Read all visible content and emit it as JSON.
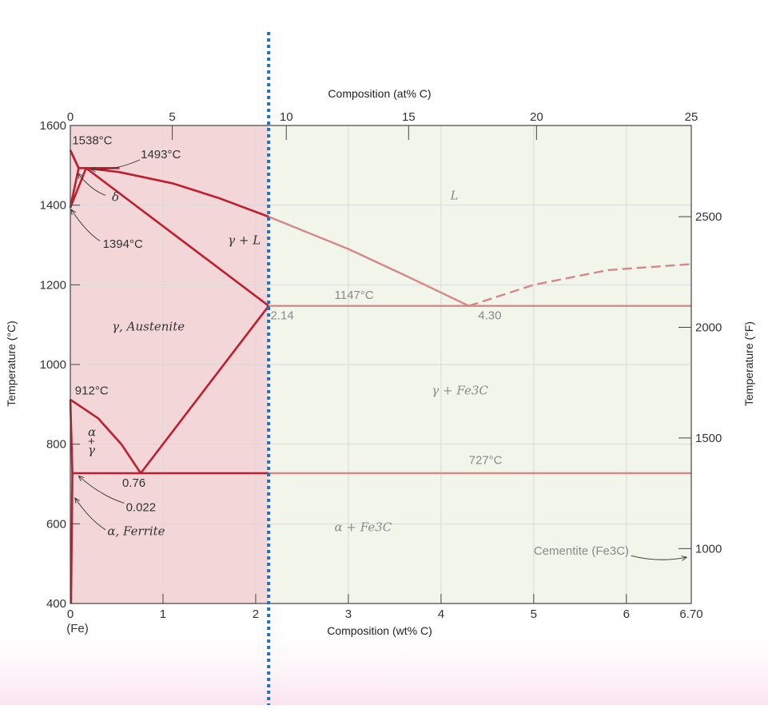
{
  "chart_data": {
    "type": "line",
    "title": "",
    "xlabel": "Composition (wt% C)",
    "ylabel": "Temperature (°C)",
    "x2label": "Composition (at% C)",
    "y2label": "Temperature (°F)",
    "xlim": [
      0,
      6.7
    ],
    "ylim": [
      400,
      1600
    ],
    "x_ticks": [
      {
        "value": 0,
        "label": "0"
      },
      {
        "value": 1,
        "label": "1"
      },
      {
        "value": 2,
        "label": "2"
      },
      {
        "value": 3,
        "label": "3"
      },
      {
        "value": 4,
        "label": "4"
      },
      {
        "value": 5,
        "label": "5"
      },
      {
        "value": 6,
        "label": "6"
      },
      {
        "value": 6.7,
        "label": "6.70"
      }
    ],
    "x_sublabel": "(Fe)",
    "y_ticks": [
      {
        "value": 400,
        "label": "400"
      },
      {
        "value": 600,
        "label": "600"
      },
      {
        "value": 800,
        "label": "800"
      },
      {
        "value": 1000,
        "label": "1000"
      },
      {
        "value": 1200,
        "label": "1200"
      },
      {
        "value": 1400,
        "label": "1400"
      },
      {
        "value": 1600,
        "label": "1600"
      }
    ],
    "top_ticks": [
      {
        "value": 0,
        "label": "0"
      },
      {
        "value": 1.1,
        "label": "5"
      },
      {
        "value": 2.33,
        "label": "10"
      },
      {
        "value": 3.65,
        "label": "15"
      },
      {
        "value": 5.03,
        "label": "20"
      },
      {
        "value": 6.7,
        "label": "25"
      }
    ],
    "right_ticks": [
      {
        "value": 537.8,
        "label": "1000"
      },
      {
        "value": 815.6,
        "label": "1500"
      },
      {
        "value": 1093.3,
        "label": "2000"
      },
      {
        "value": 1371.1,
        "label": "2500"
      }
    ],
    "grid": true,
    "highlight_region": {
      "from": 0,
      "to": 2.14,
      "color": "#f3d6d8"
    },
    "background_region_color": "#f1f5ea",
    "divider_line": {
      "x": 2.14,
      "style": "dotted",
      "color": "#1f6fc2"
    },
    "colors": {
      "dark_line": "#bf1e2e",
      "light_line": "#d68787"
    },
    "series": [
      {
        "x": [
          0,
          0.09
        ],
        "y": [
          1538,
          1493
        ],
        "style": "dark"
      },
      {
        "x": [
          0.09,
          0.53
        ],
        "y": [
          1493,
          1493
        ],
        "style": "dark"
      },
      {
        "x": [
          0.17,
          0.53,
          1.1,
          1.6,
          2.14
        ],
        "y": [
          1493,
          1483,
          1455,
          1418,
          1371
        ],
        "style": "dark"
      },
      {
        "x": [
          2.14,
          3.0,
          3.6,
          4.3
        ],
        "y": [
          1371,
          1290,
          1225,
          1147
        ],
        "style": "light"
      },
      {
        "x": [
          4.3,
          5.0,
          5.8,
          6.7
        ],
        "y": [
          1147,
          1200,
          1237,
          1252
        ],
        "style": "light-dashed"
      },
      {
        "x": [
          0,
          0.09
        ],
        "y": [
          1538,
          1493
        ],
        "style": "dark"
      },
      {
        "x": [
          0,
          0.09
        ],
        "y": [
          1394,
          1493
        ],
        "style": "dark"
      },
      {
        "x": [
          0,
          0.17
        ],
        "y": [
          1394,
          1493
        ],
        "style": "dark"
      },
      {
        "x": [
          0.17,
          2.14
        ],
        "y": [
          1493,
          1147
        ],
        "style": "dark"
      },
      {
        "x": [
          2.14,
          6.7
        ],
        "y": [
          1147,
          1147
        ],
        "style": "light"
      },
      {
        "x": [
          0,
          0.3,
          0.55,
          0.76
        ],
        "y": [
          912,
          865,
          800,
          727
        ],
        "style": "dark"
      },
      {
        "x": [
          0,
          0.022
        ],
        "y": [
          912,
          727
        ],
        "style": "dark"
      },
      {
        "x": [
          0.76,
          2.14
        ],
        "y": [
          727,
          1147
        ],
        "style": "dark"
      },
      {
        "x": [
          0.022,
          2.14
        ],
        "y": [
          727,
          727
        ],
        "style": "dark"
      },
      {
        "x": [
          2.14,
          6.7
        ],
        "y": [
          727,
          727
        ],
        "style": "light"
      },
      {
        "x": [
          0.022,
          0.008
        ],
        "y": [
          727,
          400
        ],
        "style": "dark"
      }
    ],
    "annotations": [
      {
        "text": "1538°C",
        "x": 0.02,
        "y": 1553,
        "color": "dark"
      },
      {
        "text": "1493°C",
        "x": 0.76,
        "y": 1518,
        "color": "dark"
      },
      {
        "text": "δ",
        "x": 0.45,
        "y": 1410,
        "color": "dark",
        "greek": true
      },
      {
        "text": "1394°C",
        "x": 0.35,
        "y": 1293,
        "color": "dark"
      },
      {
        "text": "γ + L",
        "x": 1.7,
        "y": 1302,
        "color": "dark",
        "greek": true
      },
      {
        "text": "L",
        "x": 4.1,
        "y": 1414,
        "color": "light",
        "greek": true
      },
      {
        "text": "1147°C",
        "x": 2.85,
        "y": 1165,
        "color": "light"
      },
      {
        "text": "2.14",
        "x": 2.16,
        "y": 1113,
        "color": "light"
      },
      {
        "text": "4.30",
        "x": 4.4,
        "y": 1113,
        "color": "light"
      },
      {
        "text": "γ, Austenite",
        "x": 0.45,
        "y": 1085,
        "color": "dark",
        "greek": true
      },
      {
        "text": "912°C",
        "x": 0.05,
        "y": 925,
        "color": "dark"
      },
      {
        "text": "γ + Fe3C",
        "x": 3.9,
        "y": 925,
        "color": "light",
        "greek": true
      },
      {
        "text": "α",
        "x": 0.19,
        "y": 820,
        "color": "dark",
        "greek": true
      },
      {
        "text": "+",
        "x": 0.19,
        "y": 797,
        "color": "dark"
      },
      {
        "text": "γ",
        "x": 0.19,
        "y": 775,
        "color": "dark",
        "greek": true
      },
      {
        "text": "727°C",
        "x": 4.3,
        "y": 750,
        "color": "light"
      },
      {
        "text": "0.76",
        "x": 0.56,
        "y": 693,
        "color": "dark"
      },
      {
        "text": "0.022",
        "x": 0.6,
        "y": 632,
        "color": "dark"
      },
      {
        "text": "α, Ferrite",
        "x": 0.4,
        "y": 572,
        "color": "dark",
        "greek": true
      },
      {
        "text": "α + Fe3C",
        "x": 2.85,
        "y": 582,
        "color": "light",
        "greek": true
      },
      {
        "text": "Cementite (Fe3C)",
        "x": 5.0,
        "y": 522,
        "color": "light"
      }
    ]
  }
}
